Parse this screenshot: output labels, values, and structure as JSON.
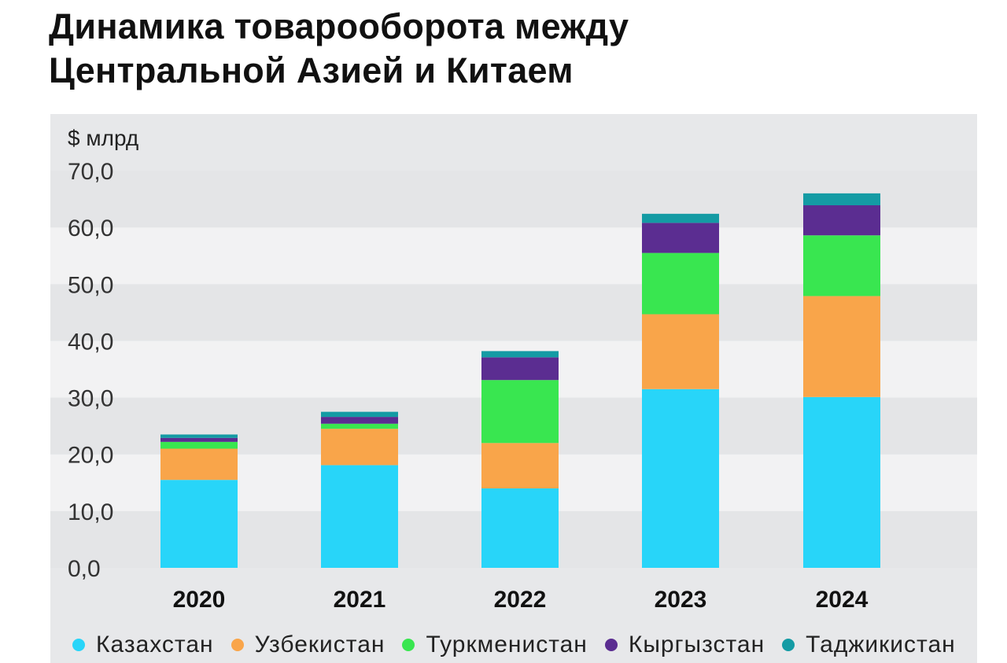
{
  "page": {
    "title_lines": [
      "Динамика товарооборота между",
      "Центральной Азией и Китаем"
    ]
  },
  "chart_data": {
    "type": "bar",
    "stacked": true,
    "title": "Динамика товарооборота между Центральной Азией и Китаем",
    "ylabel": "$ млрд",
    "xlabel": "",
    "ylim": [
      0,
      70
    ],
    "yticks": [
      "0,0",
      "10,0",
      "20,0",
      "30,0",
      "40,0",
      "50,0",
      "60,0",
      "70,0"
    ],
    "ytick_values": [
      0,
      10,
      20,
      30,
      40,
      50,
      60,
      70
    ],
    "categories": [
      "2020",
      "2021",
      "2022",
      "2023",
      "2024"
    ],
    "series": [
      {
        "name": "Казахстан",
        "color": "#28d5f9",
        "values": [
          15.5,
          18.1,
          14.0,
          31.5,
          30.1
        ]
      },
      {
        "name": "Узбекистан",
        "color": "#f9a54a",
        "values": [
          5.5,
          6.4,
          8.0,
          13.2,
          17.8
        ]
      },
      {
        "name": "Туркменистан",
        "color": "#39e650",
        "values": [
          1.2,
          0.9,
          11.1,
          10.8,
          10.7
        ]
      },
      {
        "name": "Кыргызстан",
        "color": "#5b2d91",
        "values": [
          0.7,
          1.2,
          4.0,
          5.3,
          5.3
        ]
      },
      {
        "name": "Таджикистан",
        "color": "#149ba4",
        "values": [
          0.6,
          0.9,
          1.1,
          1.6,
          2.1
        ]
      }
    ],
    "legend_position": "bottom",
    "grid": "alternating horizontal bands"
  }
}
